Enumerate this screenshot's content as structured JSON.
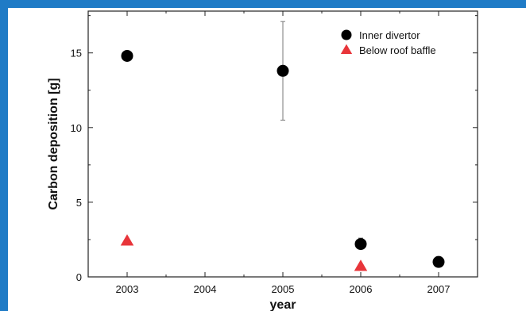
{
  "chart_data": {
    "type": "scatter",
    "title": "",
    "xlabel": "year",
    "ylabel": "Carbon deposition [g]",
    "xlim": [
      2002.5,
      2007.5
    ],
    "ylim": [
      0,
      17.8
    ],
    "xticks": [
      2003,
      2004,
      2005,
      2006,
      2007
    ],
    "yticks": [
      0,
      5,
      10,
      15
    ],
    "grid": false,
    "legend_position": "top-right",
    "series": [
      {
        "name": "Inner divertor",
        "marker": "circle",
        "color": "#000000",
        "points": [
          {
            "x": 2003,
            "y": 14.8
          },
          {
            "x": 2005,
            "y": 13.8,
            "err_low": 10.5,
            "err_high": 17.1
          },
          {
            "x": 2006,
            "y": 2.2,
            "err_low": 1.9,
            "err_high": 2.6
          },
          {
            "x": 2007,
            "y": 1.0,
            "err_low": 0.8,
            "err_high": 1.3
          }
        ]
      },
      {
        "name": "Below roof baffle",
        "marker": "triangle",
        "color": "#e8353a",
        "points": [
          {
            "x": 2003,
            "y": 2.4
          },
          {
            "x": 2006,
            "y": 0.7
          }
        ]
      }
    ]
  }
}
